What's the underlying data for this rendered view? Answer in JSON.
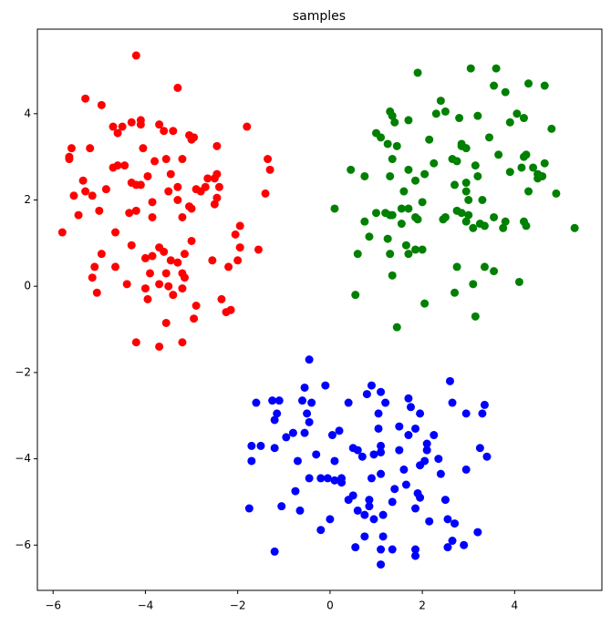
{
  "chart_data": {
    "type": "scatter",
    "title": "samples",
    "xlim": [
      -6.34,
      5.89
    ],
    "ylim": [
      -7.05,
      5.96
    ],
    "xticks": [
      {
        "value": -6,
        "label": "−6"
      },
      {
        "value": -4,
        "label": "−4"
      },
      {
        "value": -2,
        "label": "−2"
      },
      0,
      2,
      4
    ],
    "yticks": [
      {
        "value": -6,
        "label": "−6"
      },
      {
        "value": -4,
        "label": "−4"
      },
      {
        "value": -2,
        "label": "−2"
      },
      0,
      2,
      4
    ],
    "grid": false,
    "series": [
      {
        "color": "#ff0000",
        "x": [
          -4.2,
          -3.3,
          -5.3,
          -4.95,
          -1.8,
          -4.1,
          -4.1,
          -4.3,
          -3.7,
          -4.5,
          -4.7,
          -3.6,
          -3.4,
          -3.05,
          -2.95,
          -3.0,
          -4.6,
          -5.6,
          -5.65,
          -5.65,
          -5.2,
          -4.05,
          -2.45,
          -1.35,
          -1.3,
          -3.55,
          -3.2,
          -3.8,
          -4.6,
          -4.7,
          -4.45,
          -3.45,
          -3.95,
          -2.45,
          -2.5,
          -2.65,
          -2.4,
          -2.7,
          -2.8,
          -2.9,
          -4.3,
          -4.2,
          -4.1,
          -3.5,
          -3.3,
          -4.85,
          -5.35,
          -5.3,
          -5.15,
          -5.55,
          -1.4,
          -3.3,
          -3.85,
          -2.45,
          -2.5,
          -3.0,
          -3.05,
          -4.35,
          -4.2,
          -5.0,
          -5.45,
          -3.2,
          -3.85,
          -5.8,
          -4.65,
          -1.95,
          -2.05,
          -3.0,
          -4.3,
          -3.7,
          -3.6,
          -1.95,
          -1.55,
          -3.15,
          -3.85,
          -4.0,
          -3.45,
          -2.55,
          -3.3,
          -4.95,
          -2.0,
          -2.2,
          -5.1,
          -4.65,
          -3.55,
          -3.9,
          -3.2,
          -3.15,
          -5.15,
          -4.4,
          -3.7,
          -3.5,
          -4.0,
          -3.2,
          -5.05,
          -3.4,
          -3.95,
          -2.35,
          -2.9,
          -2.25,
          -2.15,
          -3.55,
          -2.95,
          -4.2,
          -3.7,
          -3.2
        ],
        "y": [
          5.35,
          4.6,
          4.35,
          4.2,
          3.7,
          3.85,
          3.75,
          3.8,
          3.75,
          3.7,
          3.7,
          3.6,
          3.6,
          3.5,
          3.45,
          3.4,
          3.55,
          3.2,
          3.0,
          2.95,
          3.2,
          3.2,
          3.25,
          2.95,
          2.7,
          2.95,
          2.95,
          2.9,
          2.8,
          2.75,
          2.8,
          2.6,
          2.55,
          2.6,
          2.5,
          2.5,
          2.3,
          2.3,
          2.2,
          2.25,
          2.4,
          2.35,
          2.35,
          2.2,
          2.3,
          2.25,
          2.45,
          2.2,
          2.1,
          2.1,
          2.15,
          2.0,
          1.95,
          2.05,
          1.9,
          1.8,
          1.85,
          1.7,
          1.75,
          1.75,
          1.65,
          1.6,
          1.6,
          1.25,
          1.25,
          1.4,
          1.2,
          1.05,
          0.95,
          0.9,
          0.8,
          0.9,
          0.85,
          0.75,
          0.7,
          0.65,
          0.6,
          0.6,
          0.55,
          0.75,
          0.6,
          0.45,
          0.45,
          0.45,
          0.3,
          0.3,
          0.3,
          0.2,
          0.2,
          0.05,
          0.05,
          0.0,
          -0.05,
          -0.05,
          -0.15,
          -0.2,
          -0.3,
          -0.3,
          -0.45,
          -0.6,
          -0.55,
          -0.85,
          -0.75,
          -1.3,
          -1.4,
          -1.3
        ]
      },
      {
        "color": "#008000",
        "x": [
          3.05,
          3.6,
          1.9,
          3.55,
          4.3,
          4.65,
          3.8,
          2.4,
          1.3,
          1.35,
          2.3,
          2.5,
          2.8,
          3.2,
          4.05,
          4.2,
          3.9,
          1.7,
          1.4,
          4.8,
          1.0,
          1.1,
          3.45,
          2.15,
          1.45,
          1.25,
          2.85,
          2.95,
          2.85,
          3.65,
          4.2,
          4.25,
          2.65,
          2.75,
          3.15,
          4.65,
          4.4,
          4.15,
          2.25,
          1.35,
          0.45,
          1.7,
          3.9,
          4.5,
          4.6,
          4.5,
          0.75,
          1.3,
          2.05,
          3.2,
          1.85,
          2.95,
          2.7,
          1.6,
          2.95,
          4.3,
          4.9,
          3.0,
          2.0,
          3.3,
          1.7,
          1.55,
          0.1,
          2.75,
          2.85,
          3.0,
          1.0,
          1.2,
          1.3,
          1.35,
          1.85,
          1.9,
          2.5,
          2.45,
          3.55,
          2.95,
          3.8,
          0.75,
          1.55,
          4.2,
          4.25,
          3.25,
          3.1,
          3.35,
          3.75,
          5.3,
          0.85,
          1.25,
          1.65,
          1.85,
          2.0,
          1.7,
          1.3,
          0.6,
          2.75,
          3.35,
          3.55,
          1.35,
          4.1,
          3.1,
          2.7,
          0.55,
          2.05,
          3.15,
          1.45
        ],
        "y": [
          5.05,
          5.05,
          4.95,
          4.65,
          4.7,
          4.65,
          4.5,
          4.3,
          4.05,
          3.95,
          4.0,
          4.05,
          3.9,
          3.95,
          4.0,
          3.9,
          3.8,
          3.85,
          3.8,
          3.65,
          3.55,
          3.45,
          3.45,
          3.4,
          3.25,
          3.3,
          3.3,
          3.2,
          3.25,
          3.05,
          3.0,
          3.05,
          2.95,
          2.9,
          2.8,
          2.85,
          2.75,
          2.75,
          2.85,
          2.95,
          2.7,
          2.7,
          2.65,
          2.6,
          2.55,
          2.5,
          2.55,
          2.55,
          2.6,
          2.55,
          2.45,
          2.4,
          2.35,
          2.2,
          2.2,
          2.2,
          2.15,
          2.0,
          1.95,
          2.0,
          1.8,
          1.8,
          1.8,
          1.75,
          1.7,
          1.65,
          1.7,
          1.7,
          1.65,
          1.65,
          1.6,
          1.55,
          1.6,
          1.55,
          1.6,
          1.5,
          1.5,
          1.5,
          1.45,
          1.5,
          1.4,
          1.45,
          1.35,
          1.4,
          1.35,
          1.35,
          1.15,
          1.1,
          0.95,
          0.85,
          0.85,
          0.75,
          0.75,
          0.75,
          0.45,
          0.45,
          0.35,
          0.25,
          0.1,
          0.05,
          -0.15,
          -0.2,
          -0.4,
          -0.7,
          -0.95
        ]
      },
      {
        "color": "#0000ff",
        "x": [
          -0.45,
          2.6,
          0.9,
          -0.1,
          1.1,
          0.8,
          -0.55,
          -1.25,
          -1.6,
          -1.1,
          -0.6,
          -0.4,
          0.4,
          1.7,
          1.2,
          2.65,
          3.35,
          1.75,
          3.3,
          2.95,
          1.95,
          -1.15,
          -0.5,
          1.05,
          -1.2,
          0.2,
          -0.45,
          1.5,
          1.05,
          1.85,
          -0.8,
          -0.55,
          0.05,
          -0.95,
          1.7,
          2.25,
          -1.7,
          -1.5,
          -1.2,
          1.1,
          1.5,
          2.1,
          3.25,
          0.5,
          0.6,
          0.95,
          1.1,
          0.7,
          -0.3,
          2.1,
          -1.7,
          -0.7,
          0.1,
          2.05,
          2.35,
          1.95,
          3.4,
          1.6,
          2.4,
          2.95,
          0.9,
          1.1,
          -0.05,
          0.1,
          0.25,
          0.25,
          1.65,
          -0.45,
          -0.2,
          1.4,
          -0.75,
          0.5,
          1.9,
          1.95,
          0.85,
          0.4,
          1.35,
          2.5,
          -1.05,
          0.85,
          1.85,
          -1.75,
          0.6,
          -0.65,
          0.75,
          0.0,
          1.15,
          0.95,
          2.15,
          2.55,
          2.7,
          -0.2,
          3.2,
          0.75,
          1.15,
          2.65,
          2.55,
          2.9,
          0.55,
          1.85,
          1.35,
          1.1,
          -1.2,
          1.85,
          1.1
        ],
        "y": [
          -1.7,
          -2.2,
          -2.3,
          -2.3,
          -2.45,
          -2.5,
          -2.35,
          -2.65,
          -2.7,
          -2.65,
          -2.65,
          -2.7,
          -2.7,
          -2.6,
          -2.7,
          -2.7,
          -2.75,
          -2.8,
          -2.95,
          -2.95,
          -2.95,
          -2.95,
          -2.95,
          -2.95,
          -3.1,
          -3.35,
          -3.15,
          -3.25,
          -3.3,
          -3.3,
          -3.4,
          -3.4,
          -3.45,
          -3.5,
          -3.45,
          -3.45,
          -3.7,
          -3.7,
          -3.75,
          -3.7,
          -3.8,
          -3.65,
          -3.75,
          -3.75,
          -3.8,
          -3.9,
          -3.85,
          -3.95,
          -3.9,
          -3.8,
          -4.05,
          -4.05,
          -4.05,
          -4.05,
          -4.0,
          -4.15,
          -3.95,
          -4.25,
          -4.35,
          -4.25,
          -4.45,
          -4.35,
          -4.45,
          -4.5,
          -4.45,
          -4.55,
          -4.6,
          -4.45,
          -4.45,
          -4.7,
          -4.75,
          -4.85,
          -4.8,
          -4.9,
          -4.95,
          -4.95,
          -5.0,
          -4.95,
          -5.1,
          -5.1,
          -5.15,
          -5.15,
          -5.2,
          -5.2,
          -5.3,
          -5.4,
          -5.3,
          -5.4,
          -5.45,
          -5.4,
          -5.5,
          -5.65,
          -5.7,
          -5.8,
          -5.8,
          -5.9,
          -6.05,
          -6.0,
          -6.05,
          -6.1,
          -6.1,
          -6.1,
          -6.15,
          -6.25,
          -6.45
        ]
      }
    ]
  }
}
